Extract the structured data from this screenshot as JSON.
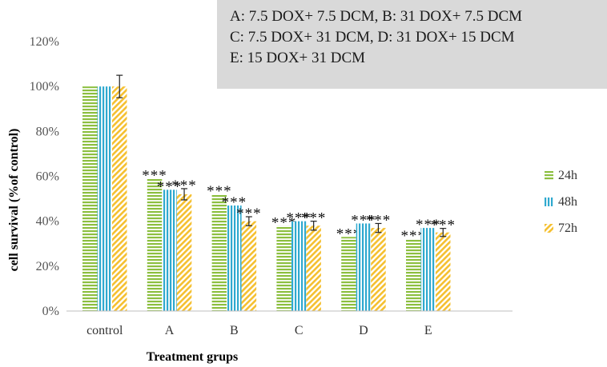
{
  "notes": {
    "line1": "A: 7.5 DOX+ 7.5 DCM, B: 31 DOX+ 7.5 DCM",
    "line2": "C: 7.5 DOX+ 31 DCM, D: 31 DOX+ 15 DCM",
    "line3": "E: 15 DOX+ 31 DCM"
  },
  "chart_data": {
    "type": "bar",
    "title": "",
    "xlabel": "Treatment grups",
    "ylabel": "cell survival (%of control)",
    "ylim": [
      0,
      120
    ],
    "yticks": [
      "0%",
      "20%",
      "40%",
      "60%",
      "80%",
      "100%",
      "120%"
    ],
    "categories": [
      "control",
      "A",
      "B",
      "C",
      "D",
      "E"
    ],
    "series": [
      {
        "name": "24h",
        "color": "#8cbf3f",
        "pattern": "horizontal-stripes",
        "values": [
          100,
          59,
          52,
          38,
          33,
          32
        ],
        "errors": [
          null,
          null,
          null,
          null,
          null,
          null
        ],
        "annotations": [
          "",
          "***",
          "***",
          "***",
          "***",
          "***"
        ]
      },
      {
        "name": "48h",
        "color": "#2fa9cf",
        "pattern": "vertical-stripes",
        "values": [
          100,
          54,
          47,
          40,
          39,
          37
        ],
        "errors": [
          null,
          null,
          null,
          null,
          null,
          null
        ],
        "annotations": [
          "",
          "***",
          "***",
          "***",
          "***",
          "***"
        ]
      },
      {
        "name": "72h",
        "color": "#f5c030",
        "pattern": "diagonal-stripes",
        "values": [
          100,
          52,
          40,
          38,
          37,
          35
        ],
        "errors": [
          5,
          2.5,
          2,
          2,
          2,
          1.8
        ],
        "annotations": [
          "",
          "***",
          "***",
          "***",
          "***",
          "***"
        ]
      }
    ],
    "legend_position": "right",
    "grid": false
  }
}
